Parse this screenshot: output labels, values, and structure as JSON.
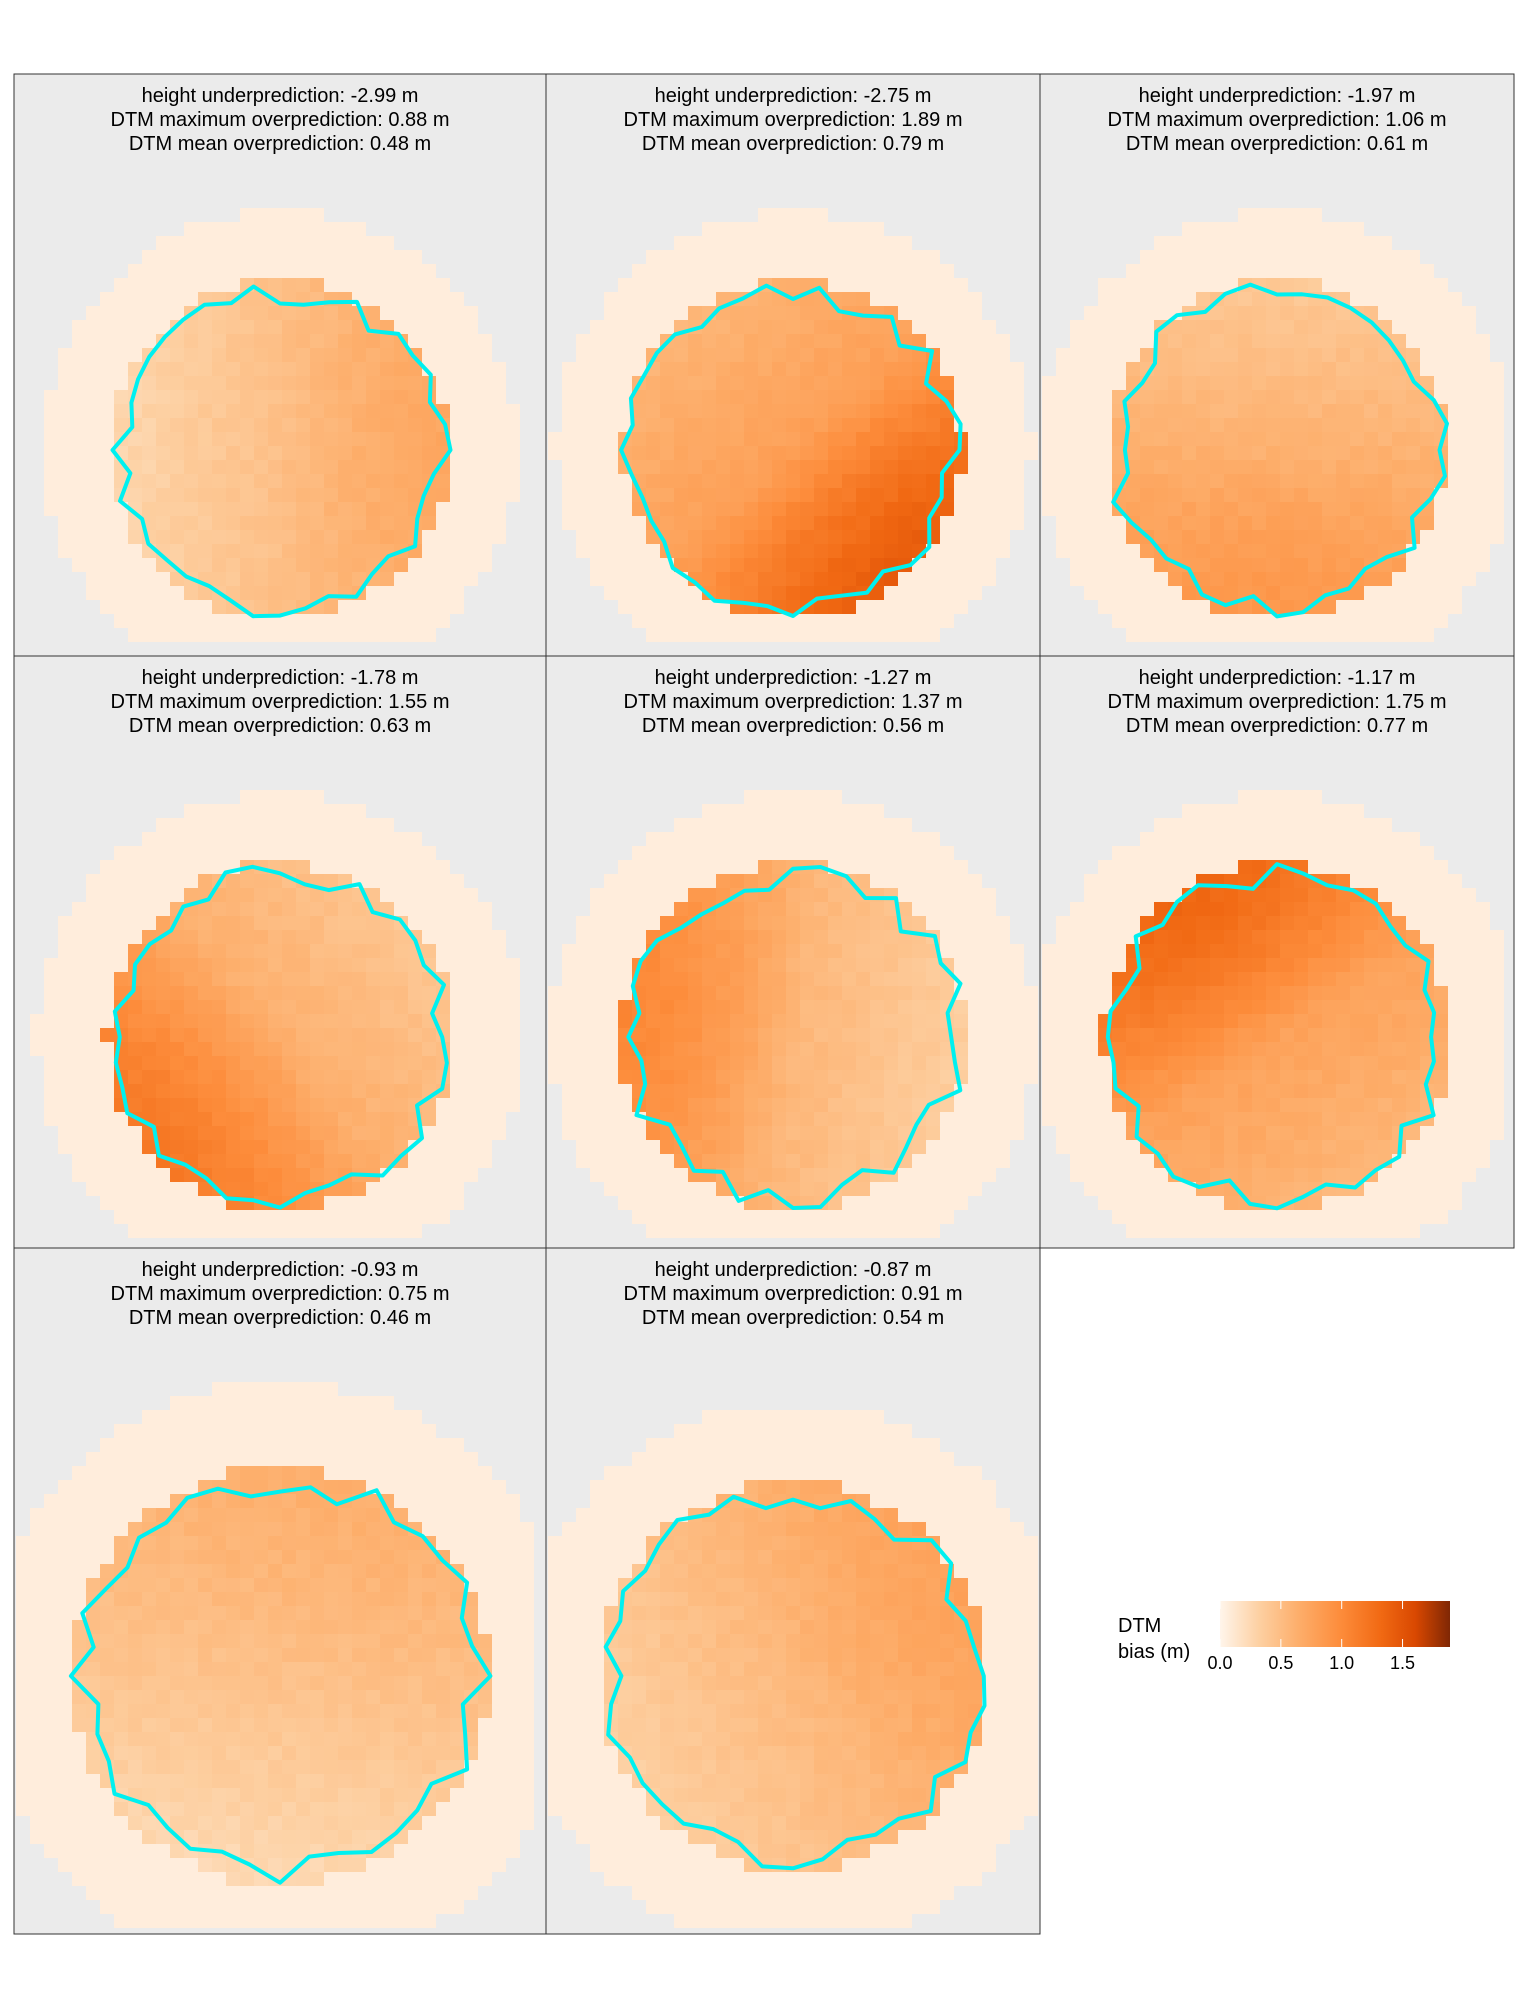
{
  "chart_data": {
    "type": "heatmap",
    "title": "",
    "colorscale": [
      "#fff5eb",
      "#fdd0a2",
      "#fdae6b",
      "#fd8d3c",
      "#f16913",
      "#d94801",
      "#7f2704"
    ],
    "outline_color": "#00f0f0",
    "panel_background": "#ebebeb",
    "panels": [
      {
        "lines": [
          "height underprediction: -2.99 m",
          "DTM maximum overprediction: 0.88 m",
          "DTM mean overprediction: 0.48 m"
        ],
        "height_underprediction": -2.99,
        "dtm_max_overprediction": 0.88,
        "dtm_mean_overprediction": 0.48
      },
      {
        "lines": [
          "height underprediction: -2.75 m",
          "DTM maximum overprediction: 1.89 m",
          "DTM mean overprediction: 0.79 m"
        ],
        "height_underprediction": -2.75,
        "dtm_max_overprediction": 1.89,
        "dtm_mean_overprediction": 0.79
      },
      {
        "lines": [
          "height underprediction: -1.97 m",
          "DTM maximum overprediction: 1.06 m",
          "DTM mean overprediction: 0.61 m"
        ],
        "height_underprediction": -1.97,
        "dtm_max_overprediction": 1.06,
        "dtm_mean_overprediction": 0.61
      },
      {
        "lines": [
          "height underprediction: -1.78 m",
          "DTM maximum overprediction: 1.55 m",
          "DTM mean overprediction: 0.63 m"
        ],
        "height_underprediction": -1.78,
        "dtm_max_overprediction": 1.55,
        "dtm_mean_overprediction": 0.63
      },
      {
        "lines": [
          "height underprediction: -1.27 m",
          "DTM maximum overprediction: 1.37 m",
          "DTM mean overprediction: 0.56 m"
        ],
        "height_underprediction": -1.27,
        "dtm_max_overprediction": 1.37,
        "dtm_mean_overprediction": 0.56
      },
      {
        "lines": [
          "height underprediction: -1.17 m",
          "DTM maximum overprediction: 1.75 m",
          "DTM mean overprediction: 0.77 m"
        ],
        "height_underprediction": -1.17,
        "dtm_max_overprediction": 1.75,
        "dtm_mean_overprediction": 0.77
      },
      {
        "lines": [
          "height underprediction: -0.93 m",
          "DTM maximum overprediction: 0.75 m",
          "DTM mean overprediction: 0.46 m"
        ],
        "height_underprediction": -0.93,
        "dtm_max_overprediction": 0.75,
        "dtm_mean_overprediction": 0.46
      },
      {
        "lines": [
          "height underprediction: -0.87 m",
          "DTM maximum overprediction: 0.91 m",
          "DTM mean overprediction: 0.54 m"
        ],
        "height_underprediction": -0.87,
        "dtm_max_overprediction": 0.91,
        "dtm_mean_overprediction": 0.54
      }
    ],
    "legend": {
      "title_lines": [
        "DTM",
        "bias (m)"
      ],
      "ticks": [
        0.0,
        0.5,
        1.0,
        1.5
      ],
      "tick_labels": [
        "0.0",
        "0.5",
        "1.0",
        "1.5"
      ],
      "range": [
        0,
        1.89
      ]
    }
  }
}
